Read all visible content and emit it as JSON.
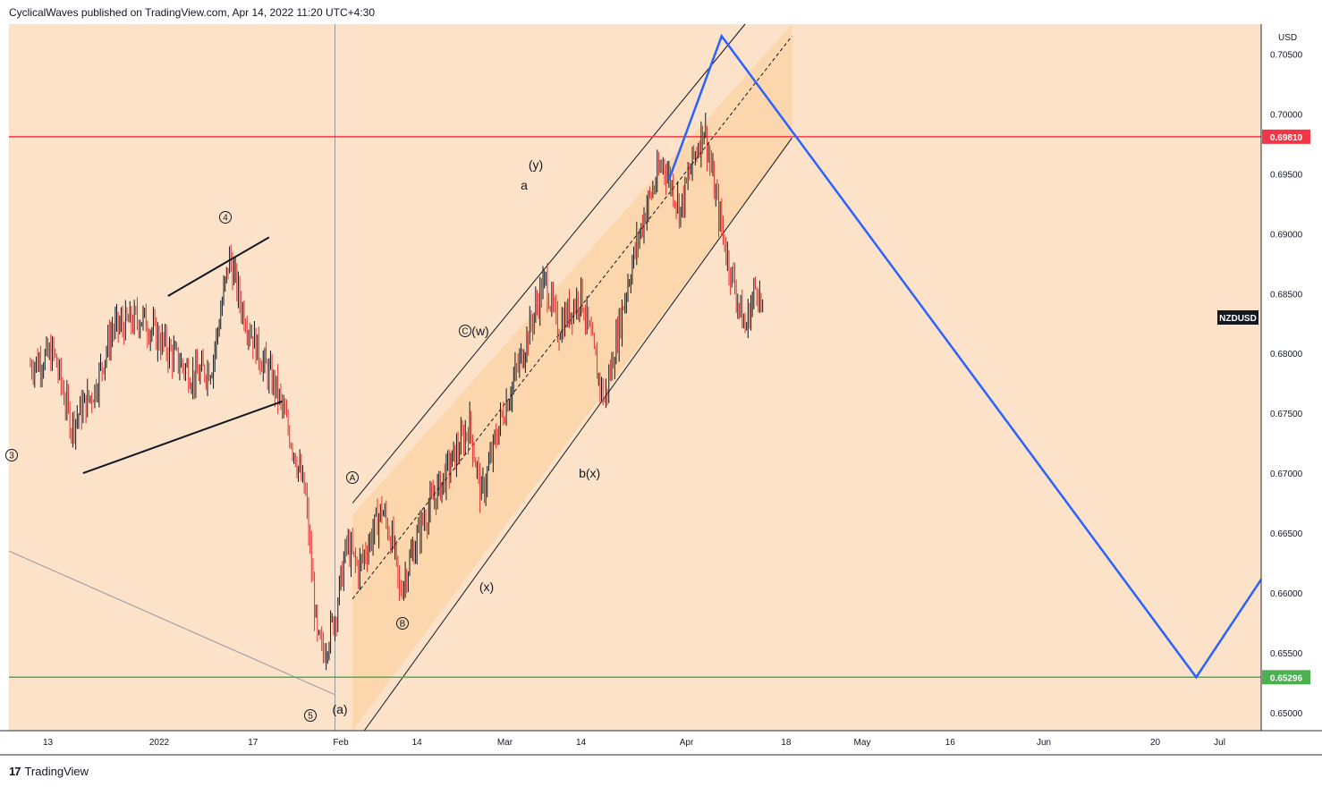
{
  "header": {
    "attribution": "CyclicalWaves published on TradingView.com, Apr 14, 2022 11:20 UTC+4:30"
  },
  "footer": {
    "logo": "17",
    "brand": "TradingView"
  },
  "chart_data": {
    "type": "candlestick",
    "symbol": "NZDUSD",
    "currency": "USD",
    "x_tick_labels": [
      "13",
      "2022",
      "17",
      "Feb",
      "14",
      "Mar",
      "14",
      "Apr",
      "18",
      "May",
      "16",
      "Jun",
      "20",
      "Jul"
    ],
    "y_tick_labels": [
      "0.70500",
      "0.70000",
      "0.69500",
      "0.69000",
      "0.68500",
      "0.68000",
      "0.67500",
      "0.67000",
      "0.66500",
      "0.66000",
      "0.65500",
      "0.65000"
    ],
    "ylim": [
      0.6485,
      0.7075
    ],
    "horizontal_levels": [
      {
        "value": 0.6981,
        "label": "0.69810",
        "color": "#f23645"
      },
      {
        "value": 0.65296,
        "label": "0.65296",
        "color": "#4caf50"
      }
    ],
    "price_path": [
      [
        "2021-12-10",
        0.679
      ],
      [
        "2021-12-14",
        0.68
      ],
      [
        "2021-12-17",
        0.674
      ],
      [
        "2021-12-21",
        0.677
      ],
      [
        "2021-12-24",
        0.682
      ],
      [
        "2021-12-29",
        0.683
      ],
      [
        "2022-01-03",
        0.68
      ],
      [
        "2022-01-07",
        0.678
      ],
      [
        "2022-01-10",
        0.679
      ],
      [
        "2022-01-13",
        0.688
      ],
      [
        "2022-01-15",
        0.684
      ],
      [
        "2022-01-18",
        0.68
      ],
      [
        "2022-01-21",
        0.677
      ],
      [
        "2022-01-24",
        0.672
      ],
      [
        "2022-01-26",
        0.668
      ],
      [
        "2022-01-28",
        0.656
      ],
      [
        "2022-01-29",
        0.655
      ],
      [
        "2022-01-31",
        0.658
      ],
      [
        "2022-02-02",
        0.664
      ],
      [
        "2022-02-04",
        0.662
      ],
      [
        "2022-02-08",
        0.667
      ],
      [
        "2022-02-10",
        0.664
      ],
      [
        "2022-02-11",
        0.66
      ],
      [
        "2022-02-15",
        0.666
      ],
      [
        "2022-02-18",
        0.669
      ],
      [
        "2022-02-23",
        0.674
      ],
      [
        "2022-02-25",
        0.668
      ],
      [
        "2022-02-28",
        0.674
      ],
      [
        "2022-03-04",
        0.68
      ],
      [
        "2022-03-07",
        0.685
      ],
      [
        "2022-03-08",
        0.686
      ],
      [
        "2022-03-10",
        0.682
      ],
      [
        "2022-03-14",
        0.685
      ],
      [
        "2022-03-17",
        0.678
      ],
      [
        "2022-03-18",
        0.676
      ],
      [
        "2022-03-22",
        0.686
      ],
      [
        "2022-03-25",
        0.692
      ],
      [
        "2022-03-28",
        0.696
      ],
      [
        "2022-03-31",
        0.692
      ],
      [
        "2022-04-02",
        0.696
      ],
      [
        "2022-04-04",
        0.699
      ],
      [
        "2022-04-06",
        0.693
      ],
      [
        "2022-04-08",
        0.688
      ],
      [
        "2022-04-11",
        0.682
      ],
      [
        "2022-04-13",
        0.686
      ],
      [
        "2022-04-14",
        0.683
      ]
    ],
    "projection_path": [
      [
        "2022-03-29",
        0.6945
      ],
      [
        "2022-04-07",
        0.7065
      ],
      [
        "2022-06-27",
        0.65296
      ],
      [
        "2022-07-12",
        0.664
      ]
    ],
    "wave_labels": [
      {
        "text": "3",
        "circled": true
      },
      {
        "text": "4",
        "circled": true
      },
      {
        "text": "5",
        "circled": true
      },
      {
        "text": "(a)",
        "circled": false
      },
      {
        "text": "A",
        "circled": true
      },
      {
        "text": "B",
        "circled": true
      },
      {
        "text": "C",
        "circled": true
      },
      {
        "text": "(w)",
        "circled": false
      },
      {
        "text": "(x)",
        "circled": false
      },
      {
        "text": "a",
        "circled": false
      },
      {
        "text": "(y)",
        "circled": false
      },
      {
        "text": "b",
        "circled": false
      },
      {
        "text": "(x)",
        "circled": false
      }
    ],
    "colors": {
      "background": "#fbe2c8",
      "channel_fill": "#fcd3a6",
      "candle_down": "#e03030",
      "candle_up": "#131722",
      "projection": "#2962ff",
      "resistance": "#f23645",
      "support": "#4caf50"
    },
    "grid": false
  }
}
